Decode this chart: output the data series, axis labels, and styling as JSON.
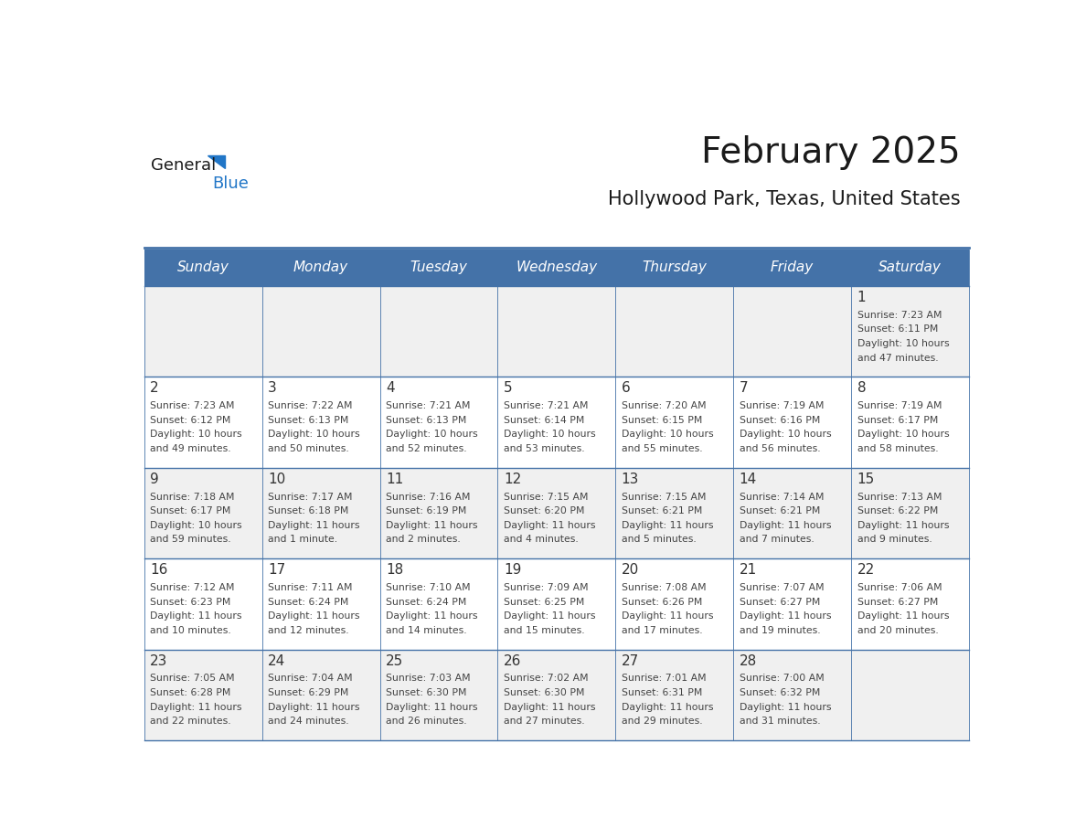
{
  "title": "February 2025",
  "subtitle": "Hollywood Park, Texas, United States",
  "header_bg_color": "#4472A8",
  "header_text_color": "#FFFFFF",
  "cell_bg_even": "#F0F0F0",
  "cell_bg_odd": "#FFFFFF",
  "border_color": "#4472A8",
  "day_names": [
    "Sunday",
    "Monday",
    "Tuesday",
    "Wednesday",
    "Thursday",
    "Friday",
    "Saturday"
  ],
  "title_color": "#1a1a1a",
  "subtitle_color": "#1a1a1a",
  "day_number_color": "#333333",
  "info_color": "#444444",
  "logo_general_color": "#1a1a1a",
  "logo_blue_color": "#2176C7",
  "weeks": [
    [
      {
        "day": "",
        "sunrise": "",
        "sunset": "",
        "daylight": ""
      },
      {
        "day": "",
        "sunrise": "",
        "sunset": "",
        "daylight": ""
      },
      {
        "day": "",
        "sunrise": "",
        "sunset": "",
        "daylight": ""
      },
      {
        "day": "",
        "sunrise": "",
        "sunset": "",
        "daylight": ""
      },
      {
        "day": "",
        "sunrise": "",
        "sunset": "",
        "daylight": ""
      },
      {
        "day": "",
        "sunrise": "",
        "sunset": "",
        "daylight": ""
      },
      {
        "day": "1",
        "sunrise": "7:23 AM",
        "sunset": "6:11 PM",
        "daylight": "10 hours\nand 47 minutes."
      }
    ],
    [
      {
        "day": "2",
        "sunrise": "7:23 AM",
        "sunset": "6:12 PM",
        "daylight": "10 hours\nand 49 minutes."
      },
      {
        "day": "3",
        "sunrise": "7:22 AM",
        "sunset": "6:13 PM",
        "daylight": "10 hours\nand 50 minutes."
      },
      {
        "day": "4",
        "sunrise": "7:21 AM",
        "sunset": "6:13 PM",
        "daylight": "10 hours\nand 52 minutes."
      },
      {
        "day": "5",
        "sunrise": "7:21 AM",
        "sunset": "6:14 PM",
        "daylight": "10 hours\nand 53 minutes."
      },
      {
        "day": "6",
        "sunrise": "7:20 AM",
        "sunset": "6:15 PM",
        "daylight": "10 hours\nand 55 minutes."
      },
      {
        "day": "7",
        "sunrise": "7:19 AM",
        "sunset": "6:16 PM",
        "daylight": "10 hours\nand 56 minutes."
      },
      {
        "day": "8",
        "sunrise": "7:19 AM",
        "sunset": "6:17 PM",
        "daylight": "10 hours\nand 58 minutes."
      }
    ],
    [
      {
        "day": "9",
        "sunrise": "7:18 AM",
        "sunset": "6:17 PM",
        "daylight": "10 hours\nand 59 minutes."
      },
      {
        "day": "10",
        "sunrise": "7:17 AM",
        "sunset": "6:18 PM",
        "daylight": "11 hours\nand 1 minute."
      },
      {
        "day": "11",
        "sunrise": "7:16 AM",
        "sunset": "6:19 PM",
        "daylight": "11 hours\nand 2 minutes."
      },
      {
        "day": "12",
        "sunrise": "7:15 AM",
        "sunset": "6:20 PM",
        "daylight": "11 hours\nand 4 minutes."
      },
      {
        "day": "13",
        "sunrise": "7:15 AM",
        "sunset": "6:21 PM",
        "daylight": "11 hours\nand 5 minutes."
      },
      {
        "day": "14",
        "sunrise": "7:14 AM",
        "sunset": "6:21 PM",
        "daylight": "11 hours\nand 7 minutes."
      },
      {
        "day": "15",
        "sunrise": "7:13 AM",
        "sunset": "6:22 PM",
        "daylight": "11 hours\nand 9 minutes."
      }
    ],
    [
      {
        "day": "16",
        "sunrise": "7:12 AM",
        "sunset": "6:23 PM",
        "daylight": "11 hours\nand 10 minutes."
      },
      {
        "day": "17",
        "sunrise": "7:11 AM",
        "sunset": "6:24 PM",
        "daylight": "11 hours\nand 12 minutes."
      },
      {
        "day": "18",
        "sunrise": "7:10 AM",
        "sunset": "6:24 PM",
        "daylight": "11 hours\nand 14 minutes."
      },
      {
        "day": "19",
        "sunrise": "7:09 AM",
        "sunset": "6:25 PM",
        "daylight": "11 hours\nand 15 minutes."
      },
      {
        "day": "20",
        "sunrise": "7:08 AM",
        "sunset": "6:26 PM",
        "daylight": "11 hours\nand 17 minutes."
      },
      {
        "day": "21",
        "sunrise": "7:07 AM",
        "sunset": "6:27 PM",
        "daylight": "11 hours\nand 19 minutes."
      },
      {
        "day": "22",
        "sunrise": "7:06 AM",
        "sunset": "6:27 PM",
        "daylight": "11 hours\nand 20 minutes."
      }
    ],
    [
      {
        "day": "23",
        "sunrise": "7:05 AM",
        "sunset": "6:28 PM",
        "daylight": "11 hours\nand 22 minutes."
      },
      {
        "day": "24",
        "sunrise": "7:04 AM",
        "sunset": "6:29 PM",
        "daylight": "11 hours\nand 24 minutes."
      },
      {
        "day": "25",
        "sunrise": "7:03 AM",
        "sunset": "6:30 PM",
        "daylight": "11 hours\nand 26 minutes."
      },
      {
        "day": "26",
        "sunrise": "7:02 AM",
        "sunset": "6:30 PM",
        "daylight": "11 hours\nand 27 minutes."
      },
      {
        "day": "27",
        "sunrise": "7:01 AM",
        "sunset": "6:31 PM",
        "daylight": "11 hours\nand 29 minutes."
      },
      {
        "day": "28",
        "sunrise": "7:00 AM",
        "sunset": "6:32 PM",
        "daylight": "11 hours\nand 31 minutes."
      },
      {
        "day": "",
        "sunrise": "",
        "sunset": "",
        "daylight": ""
      }
    ]
  ]
}
